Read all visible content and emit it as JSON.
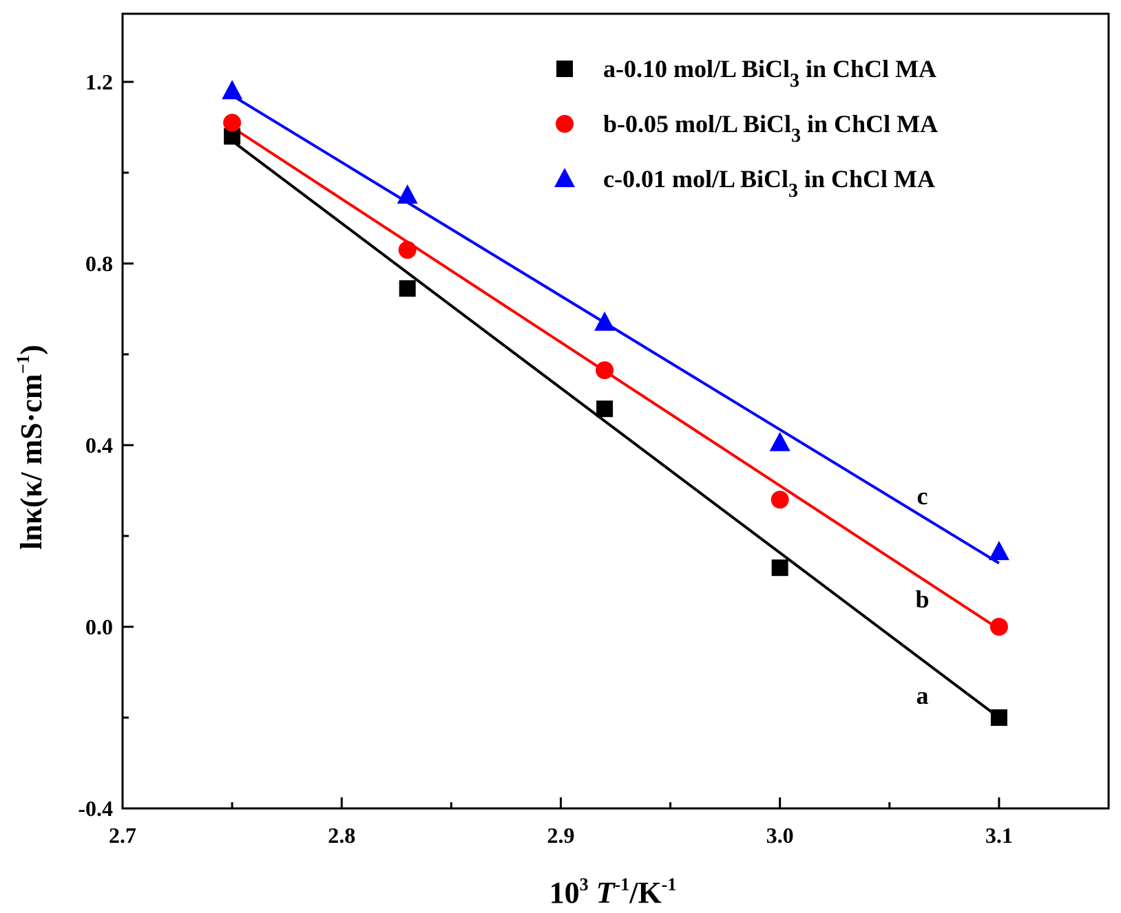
{
  "chart_data": {
    "type": "scatter",
    "title": "",
    "xlabel": {
      "base": "10",
      "exp": "3",
      "var": "T",
      "var_exp": "-1",
      "unit": "/K",
      "unit_exp": "-1"
    },
    "ylabel": {
      "main": "lnκ(κ/ mS·cm",
      "exp": "−1",
      "close": ")"
    },
    "xlim": [
      2.7,
      3.15
    ],
    "ylim": [
      -0.4,
      1.35
    ],
    "xticks": [
      2.7,
      2.8,
      2.9,
      3.0,
      3.1
    ],
    "xtick_labels": [
      "2.7",
      "2.8",
      "2.9",
      "3.0",
      "3.1"
    ],
    "xminor": [
      2.75,
      2.85,
      2.95,
      3.05
    ],
    "yticks": [
      -0.4,
      0.0,
      0.4,
      0.8,
      1.2
    ],
    "ytick_labels": [
      "-0.4",
      "0.0",
      "0.4",
      "0.8",
      "1.2"
    ],
    "yminor": [
      -0.2,
      0.2,
      0.6,
      1.0
    ],
    "legend_position": "top-right",
    "series": [
      {
        "name": "a",
        "legend_prefix": "a-0.10 mol/L BiCl",
        "legend_sub": "3",
        "legend_suffix": " in ChCl MA",
        "curve_label": "a",
        "marker": "square",
        "color": "#000000",
        "x": [
          2.75,
          2.83,
          2.92,
          3.0,
          3.1
        ],
        "y": [
          1.08,
          0.745,
          0.48,
          0.13,
          -0.2
        ],
        "fit": [
          [
            2.75,
            1.07
          ],
          [
            3.1,
            -0.2
          ]
        ]
      },
      {
        "name": "b",
        "legend_prefix": "b-0.05 mol/L BiCl",
        "legend_sub": "3",
        "legend_suffix": " in ChCl MA",
        "curve_label": "b",
        "marker": "circle",
        "color": "#ff0000",
        "x": [
          2.75,
          2.83,
          2.92,
          3.0,
          3.1
        ],
        "y": [
          1.11,
          0.83,
          0.565,
          0.28,
          0.0
        ],
        "fit": [
          [
            2.75,
            1.1
          ],
          [
            3.1,
            -0.005
          ]
        ]
      },
      {
        "name": "c",
        "legend_prefix": "c-0.01 mol/L BiCl",
        "legend_sub": "3",
        "legend_suffix": " in ChCl MA",
        "curve_label": "c",
        "marker": "triangle",
        "color": "#0000ff",
        "x": [
          2.75,
          2.83,
          2.92,
          3.0,
          3.1
        ],
        "y": [
          1.18,
          0.95,
          0.67,
          0.405,
          0.165
        ],
        "fit": [
          [
            2.75,
            1.17
          ],
          [
            3.1,
            0.14
          ]
        ]
      }
    ]
  }
}
